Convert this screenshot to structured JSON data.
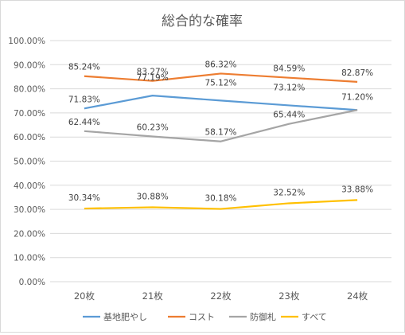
{
  "chart_data": {
    "type": "line",
    "title": "総合的な確率",
    "categories": [
      "20枚",
      "21枚",
      "22枚",
      "23枚",
      "24枚"
    ],
    "ylim": [
      0,
      100
    ],
    "y_ticks": [
      "0.00%",
      "10.00%",
      "20.00%",
      "30.00%",
      "40.00%",
      "50.00%",
      "60.00%",
      "70.00%",
      "80.00%",
      "90.00%",
      "100.00%"
    ],
    "grid": true,
    "legend_position": "bottom",
    "series": [
      {
        "name": "基地肥やし",
        "color": "#5b9bd5",
        "values": [
          71.83,
          77.19,
          75.12,
          73.12,
          71.2
        ],
        "labels": [
          "71.83%",
          "77.19%",
          "75.12%",
          "73.12%",
          "71.20%"
        ]
      },
      {
        "name": "コスト",
        "color": "#ed7d31",
        "values": [
          85.24,
          83.27,
          86.32,
          84.59,
          82.87
        ],
        "labels": [
          "85.24%",
          "83.27%",
          "86.32%",
          "84.59%",
          "82.87%"
        ]
      },
      {
        "name": "防御札",
        "color": "#a5a5a5",
        "values": [
          62.44,
          60.23,
          58.17,
          65.44,
          71.2
        ],
        "labels": [
          "62.44%",
          "60.23%",
          "58.17%",
          "65.44%",
          ""
        ]
      },
      {
        "name": "すべて",
        "color": "#ffc000",
        "values": [
          30.34,
          30.88,
          30.18,
          32.52,
          33.88
        ],
        "labels": [
          "30.34%",
          "30.88%",
          "30.18%",
          "32.52%",
          "33.88%"
        ]
      }
    ]
  }
}
